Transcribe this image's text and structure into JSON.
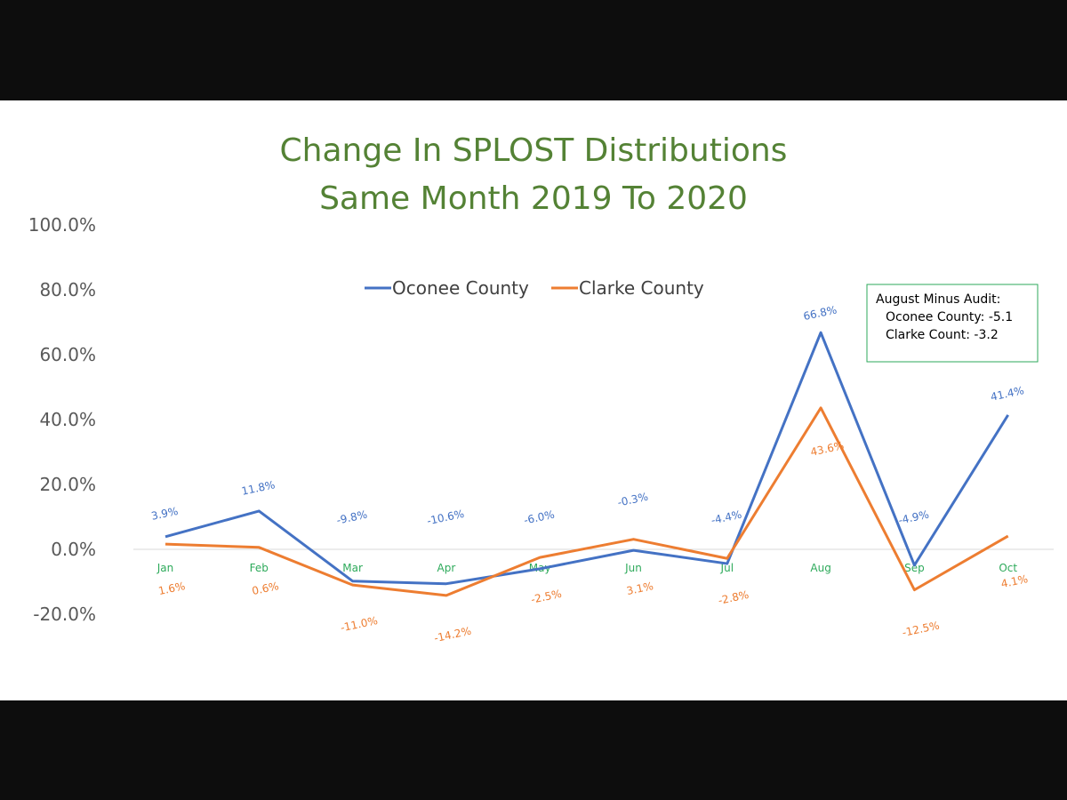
{
  "chart_data": {
    "type": "line",
    "title": [
      "Change In SPLOST Distributions",
      "Same Month 2019 To 2020"
    ],
    "categories": [
      "Jan",
      "Feb",
      "Mar",
      "Apr",
      "May",
      "Jun",
      "Jul",
      "Aug",
      "Sep",
      "Oct"
    ],
    "series": [
      {
        "name": "Oconee County",
        "color": "#4472c4",
        "values": [
          3.9,
          11.8,
          -9.8,
          -10.6,
          -6.0,
          -0.3,
          -4.4,
          66.8,
          -4.9,
          41.4
        ],
        "labels": [
          "3.9%",
          "11.8%",
          "-9.8%",
          "-10.6%",
          "-6.0%",
          "-0.3%",
          "-4.4%",
          "66.8%",
          "-4.9%",
          "41.4%"
        ]
      },
      {
        "name": "Clarke County",
        "color": "#ed7d31",
        "values": [
          1.6,
          0.6,
          -11.0,
          -14.2,
          -2.5,
          3.1,
          -2.8,
          43.6,
          -12.5,
          4.1
        ],
        "labels": [
          "1.6%",
          "0.6%",
          "-11.0%",
          "-14.2%",
          "-2.5%",
          "3.1%",
          "-2.8%",
          "43.6%",
          "-12.5%",
          "4.1%"
        ]
      }
    ],
    "ylim": [
      -20,
      100
    ],
    "yticks": [
      "100.0%",
      "80.0%",
      "60.0%",
      "40.0%",
      "20.0%",
      "0.0%",
      "-20.0%"
    ],
    "ytick_values": [
      100,
      80,
      60,
      40,
      20,
      0,
      -20
    ],
    "legend_position": "top-center",
    "grid": false,
    "annotation": [
      "August Minus Audit:",
      "Oconee County:  -5.1",
      "Clarke Count: -3.2"
    ]
  }
}
